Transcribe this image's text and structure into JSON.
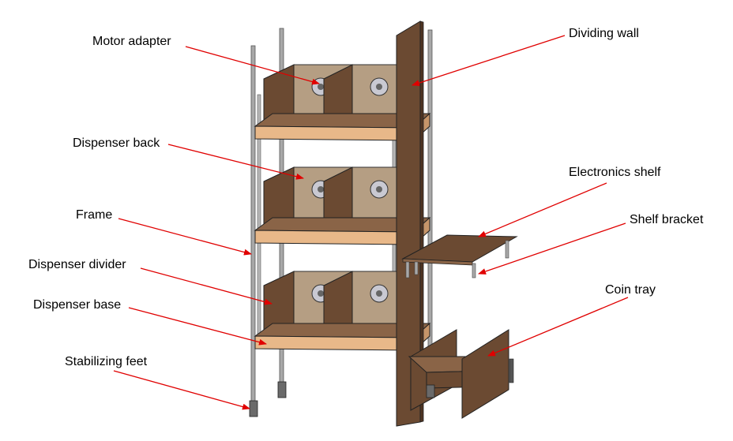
{
  "labels": {
    "motor_adapter": "Motor adapter",
    "dividing_wall": "Dividing wall",
    "dispenser_back": "Dispenser back",
    "electronics_shelf": "Electronics shelf",
    "frame": "Frame",
    "shelf_bracket": "Shelf bracket",
    "dispenser_divider": "Dispenser divider",
    "coin_tray": "Coin tray",
    "dispenser_base": "Dispenser base",
    "stabilizing_feet": "Stabilizing feet"
  },
  "colors": {
    "leader_line": "#e00000",
    "wood_light": "#e8b889",
    "wood_dark": "#6b4a32",
    "wood_mid": "#8a6447",
    "back_panel": "#b59e83",
    "rod": "#9a9a9a",
    "motor": "#c9c9d2"
  }
}
